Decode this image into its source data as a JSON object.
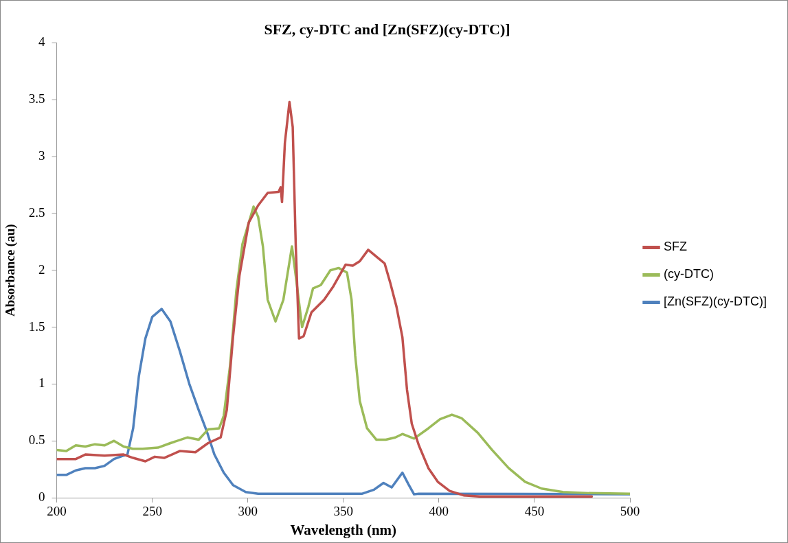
{
  "chart_data": {
    "type": "line",
    "title": "SFZ, cy-DTC and [Zn(SFZ)(cy-DTC)]",
    "xlabel": "Wavelength (nm)",
    "ylabel": "Absorbance (au)",
    "xlim": [
      200,
      500
    ],
    "xticks": [
      200,
      250,
      300,
      350,
      400,
      450,
      500
    ],
    "ylim": [
      0,
      4
    ],
    "yticks": [
      0,
      0.5,
      1,
      1.5,
      2,
      2.5,
      3,
      3.5,
      4
    ],
    "grid": false,
    "legend": "right",
    "marker": "none",
    "line_style": "solid",
    "series": [
      {
        "name": "SFZ",
        "color": "#c0504d",
        "x": [
          200,
          210,
          215,
          225,
          235,
          240,
          246.4,
          251.3,
          256.2,
          264.4,
          272.6,
          279.2,
          285.8,
          289,
          292.3,
          295.6,
          300.5,
          305.4,
          310.4,
          316.1,
          317.2,
          317.9,
          319.4,
          321.8,
          323.5,
          325.1,
          326.8,
          329.2,
          333.3,
          339.9,
          344.8,
          351.2,
          354.9,
          358.6,
          363,
          367.3,
          371.6,
          374.7,
          377.8,
          380.9,
          383.3,
          385.8,
          389.5,
          394.5,
          399.4,
          405.6,
          413,
          421.6,
          450,
          480
        ],
        "values": [
          0.34,
          0.34,
          0.38,
          0.37,
          0.38,
          0.35,
          0.32,
          0.36,
          0.35,
          0.41,
          0.4,
          0.48,
          0.53,
          0.77,
          1.42,
          1.95,
          2.42,
          2.57,
          2.68,
          2.69,
          2.73,
          2.6,
          3.12,
          3.48,
          3.26,
          2.21,
          1.4,
          1.42,
          1.63,
          1.74,
          1.86,
          2.05,
          2.04,
          2.08,
          2.18,
          2.12,
          2.06,
          1.88,
          1.68,
          1.41,
          0.95,
          0.65,
          0.46,
          0.26,
          0.14,
          0.06,
          0.02,
          0.01,
          0.01,
          0.01
        ]
      },
      {
        "name": "(cy-DTC)",
        "color": "#9bbb59",
        "x": [
          200,
          205,
          210,
          215,
          220,
          225,
          230,
          235,
          239.8,
          245,
          253,
          259.5,
          268.5,
          274.3,
          279.2,
          285,
          287.4,
          290.7,
          294,
          297.2,
          303,
          305.4,
          307.9,
          310.4,
          314.5,
          318.6,
          323.1,
          325.1,
          328.4,
          331.7,
          334.1,
          338.2,
          343.2,
          347.5,
          351.9,
          354.3,
          356.2,
          358.6,
          362.4,
          367.3,
          372.2,
          377.2,
          380.9,
          387,
          394.5,
          400.6,
          406.8,
          411.8,
          420.4,
          427.8,
          436.5,
          445.1,
          453.8,
          464.9,
          478.4,
          500
        ],
        "values": [
          0.42,
          0.41,
          0.46,
          0.45,
          0.47,
          0.46,
          0.5,
          0.45,
          0.43,
          0.43,
          0.44,
          0.48,
          0.53,
          0.51,
          0.6,
          0.61,
          0.72,
          1.16,
          1.82,
          2.23,
          2.56,
          2.47,
          2.21,
          1.74,
          1.55,
          1.74,
          2.21,
          1.95,
          1.5,
          1.68,
          1.84,
          1.87,
          2.0,
          2.02,
          1.98,
          1.74,
          1.25,
          0.85,
          0.61,
          0.51,
          0.51,
          0.53,
          0.56,
          0.52,
          0.61,
          0.69,
          0.73,
          0.7,
          0.57,
          0.42,
          0.26,
          0.14,
          0.08,
          0.05,
          0.04,
          0.035
        ]
      },
      {
        "name": "[Zn(SFZ)(cy-DTC)]",
        "color": "#4f81bd",
        "x": [
          200,
          205,
          210,
          215,
          220,
          225,
          230,
          235,
          237,
          240,
          243,
          246.4,
          250,
          254.9,
          259.5,
          264.4,
          269.4,
          274.3,
          278.4,
          282.5,
          287.4,
          292.3,
          298.9,
          305.4,
          359.9,
          366,
          371,
          375.3,
          380.9,
          384,
          387,
          389.5,
          500
        ],
        "values": [
          0.2,
          0.2,
          0.24,
          0.26,
          0.26,
          0.28,
          0.34,
          0.37,
          0.38,
          0.61,
          1.07,
          1.4,
          1.59,
          1.66,
          1.55,
          1.29,
          1.0,
          0.77,
          0.59,
          0.38,
          0.22,
          0.11,
          0.05,
          0.035,
          0.035,
          0.07,
          0.13,
          0.09,
          0.22,
          0.12,
          0.03,
          0.035,
          0.03
        ]
      }
    ]
  }
}
